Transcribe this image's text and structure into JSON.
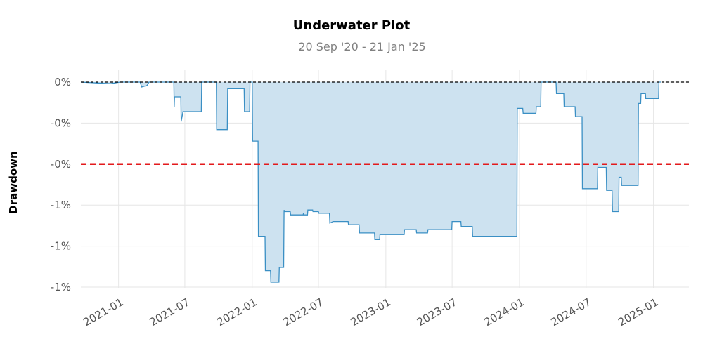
{
  "chart_data": {
    "type": "area",
    "title": "Underwater Plot",
    "subtitle": "20 Sep '20 - 21 Jan '25",
    "xlabel": "",
    "ylabel": "Drawdown",
    "x_range": [
      "2020-09-20",
      "2025-01-21"
    ],
    "ylim": [
      -0.0125,
      0.0005
    ],
    "yticks": [
      {
        "value": 0.0,
        "label": "0%"
      },
      {
        "value": -0.0025,
        "label": "-0%"
      },
      {
        "value": -0.005,
        "label": "-0%"
      },
      {
        "value": -0.0075,
        "label": "-1%"
      },
      {
        "value": -0.01,
        "label": "-1%"
      },
      {
        "value": -0.0125,
        "label": "-1%"
      }
    ],
    "xticks": [
      {
        "date": "2021-01-01",
        "label": "2021-01"
      },
      {
        "date": "2021-07-01",
        "label": "2021-07"
      },
      {
        "date": "2022-01-01",
        "label": "2022-01"
      },
      {
        "date": "2022-07-01",
        "label": "2022-07"
      },
      {
        "date": "2023-01-01",
        "label": "2023-01"
      },
      {
        "date": "2023-07-01",
        "label": "2023-07"
      },
      {
        "date": "2024-01-01",
        "label": "2024-01"
      },
      {
        "date": "2024-07-01",
        "label": "2024-07"
      },
      {
        "date": "2025-01-01",
        "label": "2025-01"
      }
    ],
    "reference_line": {
      "value": -0.005,
      "color": "#e31a1c",
      "style": "dashed"
    },
    "zero_line": {
      "value": 0.0,
      "color": "#000000",
      "style": "dashed"
    },
    "grid": true,
    "colors": {
      "line": "#3a8fc4",
      "fill": "#cde2f0"
    },
    "series": [
      {
        "points": [
          [
            "2020-09-20",
            0.0
          ],
          [
            "2020-11-01",
            -5e-05
          ],
          [
            "2020-12-10",
            -0.0001
          ],
          [
            "2021-01-05",
            0.0
          ],
          [
            "2021-03-01",
            0.0
          ],
          [
            "2021-03-05",
            -0.0003
          ],
          [
            "2021-03-20",
            -0.0002
          ],
          [
            "2021-03-25",
            0.0
          ],
          [
            "2021-06-01",
            0.0
          ],
          [
            "2021-06-02",
            -0.0015
          ],
          [
            "2021-06-03",
            -0.0009
          ],
          [
            "2021-06-20",
            -0.0009
          ],
          [
            "2021-06-21",
            -0.0024
          ],
          [
            "2021-06-26",
            -0.0018
          ],
          [
            "2021-08-15",
            -0.0018
          ],
          [
            "2021-08-16",
            0.0
          ],
          [
            "2021-09-25",
            0.0
          ],
          [
            "2021-09-26",
            -0.0029
          ],
          [
            "2021-10-25",
            -0.0029
          ],
          [
            "2021-10-26",
            -0.0004
          ],
          [
            "2021-12-10",
            -0.0004
          ],
          [
            "2021-12-11",
            -0.0018
          ],
          [
            "2021-12-25",
            -0.0018
          ],
          [
            "2021-12-26",
            0.0
          ],
          [
            "2022-01-01",
            0.0
          ],
          [
            "2022-01-02",
            -0.0036
          ],
          [
            "2022-01-17",
            -0.0036
          ],
          [
            "2022-01-18",
            -0.0094
          ],
          [
            "2022-02-05",
            -0.0094
          ],
          [
            "2022-02-06",
            -0.0115
          ],
          [
            "2022-02-20",
            -0.0115
          ],
          [
            "2022-02-21",
            -0.0122
          ],
          [
            "2022-03-15",
            -0.0122
          ],
          [
            "2022-03-16",
            -0.0113
          ],
          [
            "2022-03-28",
            -0.0113
          ],
          [
            "2022-03-29",
            -0.0078
          ],
          [
            "2022-03-30",
            -0.0079
          ],
          [
            "2022-04-15",
            -0.0079
          ],
          [
            "2022-04-16",
            -0.0081
          ],
          [
            "2022-05-20",
            -0.0081
          ],
          [
            "2022-05-21",
            -0.008
          ],
          [
            "2022-05-22",
            -0.0081
          ],
          [
            "2022-06-01",
            -0.0081
          ],
          [
            "2022-06-02",
            -0.0078
          ],
          [
            "2022-06-15",
            -0.0078
          ],
          [
            "2022-06-16",
            -0.0079
          ],
          [
            "2022-07-01",
            -0.0079
          ],
          [
            "2022-07-02",
            -0.008
          ],
          [
            "2022-07-31",
            -0.008
          ],
          [
            "2022-08-01",
            -0.0086
          ],
          [
            "2022-08-10",
            -0.0085
          ],
          [
            "2022-09-20",
            -0.0085
          ],
          [
            "2022-09-21",
            -0.0087
          ],
          [
            "2022-10-20",
            -0.0087
          ],
          [
            "2022-10-21",
            -0.0092
          ],
          [
            "2022-12-01",
            -0.0092
          ],
          [
            "2022-12-02",
            -0.0096
          ],
          [
            "2022-12-15",
            -0.0096
          ],
          [
            "2022-12-16",
            -0.0093
          ],
          [
            "2023-02-20",
            -0.0093
          ],
          [
            "2023-02-21",
            -0.009
          ],
          [
            "2023-03-25",
            -0.009
          ],
          [
            "2023-03-26",
            -0.0092
          ],
          [
            "2023-04-25",
            -0.0092
          ],
          [
            "2023-04-26",
            -0.009
          ],
          [
            "2023-06-30",
            -0.009
          ],
          [
            "2023-07-01",
            -0.0085
          ],
          [
            "2023-07-25",
            -0.0085
          ],
          [
            "2023-07-26",
            -0.0088
          ],
          [
            "2023-08-25",
            -0.0088
          ],
          [
            "2023-08-26",
            -0.0094
          ],
          [
            "2023-12-25",
            -0.0094
          ],
          [
            "2023-12-26",
            -0.0016
          ],
          [
            "2024-01-10",
            -0.0016
          ],
          [
            "2024-01-11",
            -0.0019
          ],
          [
            "2024-02-15",
            -0.0019
          ],
          [
            "2024-02-16",
            -0.0015
          ],
          [
            "2024-02-28",
            -0.0015
          ],
          [
            "2024-02-29",
            0.0
          ],
          [
            "2024-04-10",
            0.0
          ],
          [
            "2024-04-11",
            -0.0007
          ],
          [
            "2024-05-01",
            -0.0007
          ],
          [
            "2024-05-02",
            -0.0015
          ],
          [
            "2024-06-01",
            -0.0015
          ],
          [
            "2024-06-02",
            -0.0021
          ],
          [
            "2024-06-20",
            -0.0021
          ],
          [
            "2024-06-21",
            -0.0065
          ],
          [
            "2024-08-01",
            -0.0065
          ],
          [
            "2024-08-02",
            -0.0052
          ],
          [
            "2024-08-25",
            -0.0052
          ],
          [
            "2024-08-26",
            -0.0066
          ],
          [
            "2024-09-10",
            -0.0066
          ],
          [
            "2024-09-11",
            -0.0079
          ],
          [
            "2024-09-28",
            -0.0079
          ],
          [
            "2024-09-29",
            -0.0058
          ],
          [
            "2024-10-05",
            -0.0058
          ],
          [
            "2024-10-06",
            -0.0063
          ],
          [
            "2024-11-20",
            -0.0063
          ],
          [
            "2024-11-21",
            -0.0013
          ],
          [
            "2024-11-27",
            -0.0013
          ],
          [
            "2024-11-28",
            -0.0007
          ],
          [
            "2024-12-10",
            -0.0007
          ],
          [
            "2024-12-11",
            -0.001
          ],
          [
            "2025-01-15",
            -0.001
          ],
          [
            "2025-01-16",
            0.0
          ],
          [
            "2025-01-21",
            0.0
          ]
        ]
      }
    ]
  }
}
